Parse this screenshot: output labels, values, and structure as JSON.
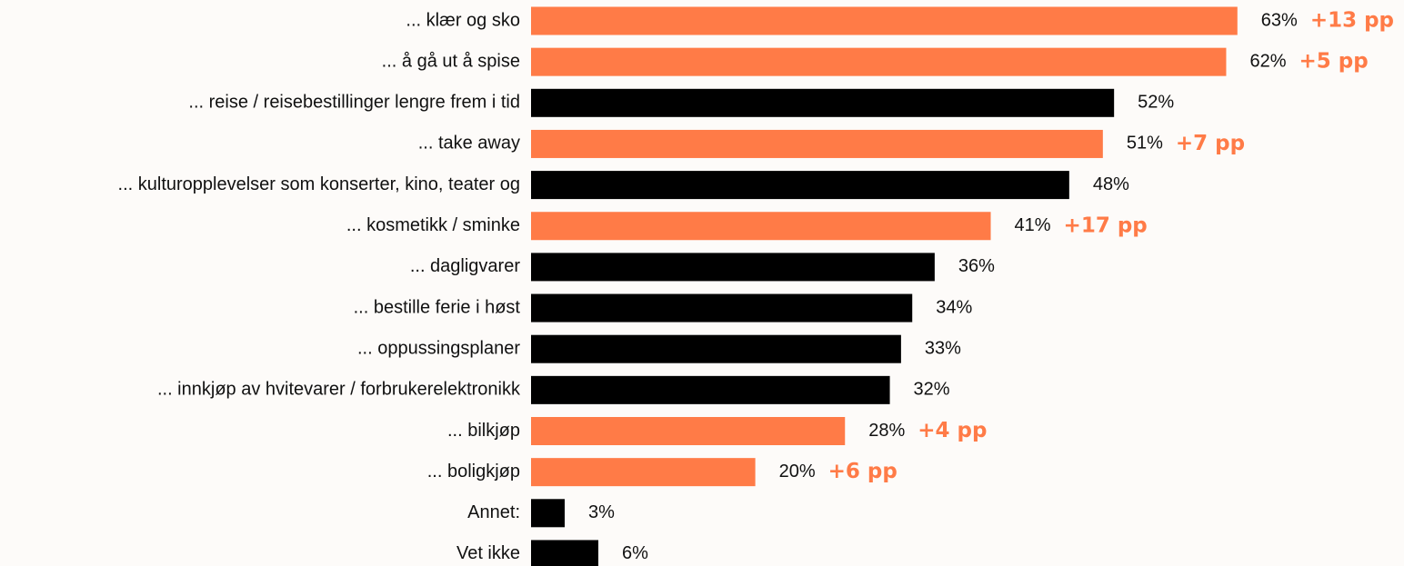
{
  "chart_data": {
    "type": "bar",
    "orientation": "horizontal",
    "categories": [
      "... klær og sko",
      "... å gå ut å spise",
      "... reise / reisebestillinger lengre frem i tid",
      "... take away",
      "... kulturopplevelser som konserter, kino, teater og",
      "... kosmetikk / sminke",
      "... dagligvarer",
      "... bestille ferie i høst",
      "... oppussingsplaner",
      "... innkjøp av hvitevarer / forbrukerelektronikk",
      "... bilkjøp",
      "... boligkjøp",
      "Annet:",
      "Vet ikke"
    ],
    "values": [
      63,
      62,
      52,
      51,
      48,
      41,
      36,
      34,
      33,
      32,
      28,
      20,
      3,
      6
    ],
    "value_labels": [
      "63%",
      "62%",
      "52%",
      "51%",
      "48%",
      "41%",
      "36%",
      "34%",
      "33%",
      "32%",
      "28%",
      "20%",
      "3%",
      "6%"
    ],
    "colors": [
      "#ff7b47",
      "#ff7b47",
      "#000000",
      "#ff7b47",
      "#000000",
      "#ff7b47",
      "#000000",
      "#000000",
      "#000000",
      "#000000",
      "#ff7b47",
      "#ff7b47",
      "#000000",
      "#000000"
    ],
    "annotations": [
      "+13 pp",
      "+5 pp",
      null,
      "+7 pp",
      null,
      "+17 pp",
      null,
      null,
      null,
      null,
      "+4 pp",
      "+6 pp",
      null,
      null
    ],
    "annotation_color": "#ff7b47"
  }
}
